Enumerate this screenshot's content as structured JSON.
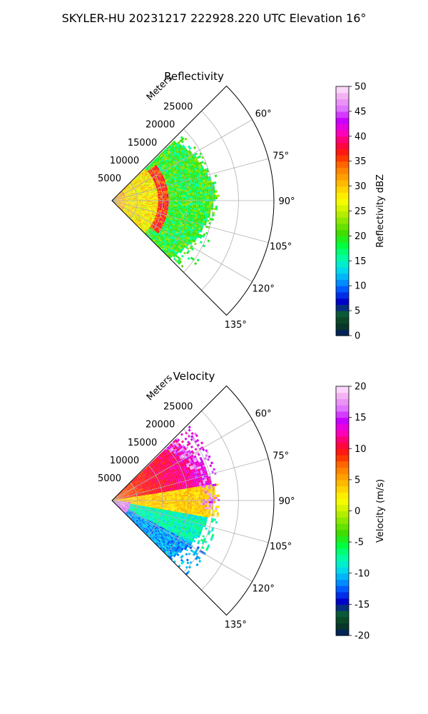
{
  "figure": {
    "title": "SKYLER-HU  20231217  222928.220 UTC Elevation 16°"
  },
  "chart_data": [
    {
      "type": "heatmap",
      "projection": "polar-sector",
      "title": "Reflectivity",
      "range_label": "Meters",
      "range_ticks": [
        5000,
        10000,
        15000,
        20000,
        25000
      ],
      "range_max": 32000,
      "azimuth_ticks": [
        "60°",
        "75°",
        "90°",
        "105°",
        "120°",
        "135°"
      ],
      "azimuth_range_deg": [
        45,
        135
      ],
      "grid": true,
      "colorbar": {
        "label": "Reflectivity dBZ",
        "min": 0,
        "max": 50,
        "ticks": [
          "0",
          "5",
          "10",
          "15",
          "20",
          "25",
          "30",
          "35",
          "40",
          "45",
          "50"
        ],
        "colors": [
          "#001a6e",
          "#0a3d1a",
          "#0b5b3c",
          "#0000c8",
          "#0050ff",
          "#00a8ff",
          "#00e6e6",
          "#00ff9c",
          "#00ff3c",
          "#3cdc00",
          "#7ee600",
          "#c8f000",
          "#ffff00",
          "#ffd000",
          "#ffa000",
          "#ff7000",
          "#ff2000",
          "#ff0050",
          "#ff00c8",
          "#c800ff",
          "#e070ff",
          "#f0a8f0",
          "#ffe6ff"
        ]
      },
      "field": {
        "range_extent_m": 21000,
        "dominant_class": "15-25 dBZ (green)",
        "near_band": "25-35 dBZ (yellow/orange) within 10000 m",
        "ring_feature": "35-40 dBZ (red) arc near 10000 m"
      }
    },
    {
      "type": "heatmap",
      "projection": "polar-sector",
      "title": "Velocity",
      "range_label": "Meters",
      "range_ticks": [
        5000,
        10000,
        15000,
        20000,
        25000
      ],
      "range_max": 32000,
      "azimuth_ticks": [
        "60°",
        "75°",
        "90°",
        "105°",
        "120°",
        "135°"
      ],
      "azimuth_range_deg": [
        45,
        135
      ],
      "grid": true,
      "colorbar": {
        "label": "Velocity (m/s)",
        "min": -20,
        "max": 20,
        "ticks": [
          "-20",
          "-15",
          "-10",
          "-5",
          "0",
          "5",
          "10",
          "15",
          "20"
        ],
        "colors": [
          "#001a6e",
          "#0a3d1a",
          "#0b5b3c",
          "#0000c8",
          "#0050ff",
          "#00a8ff",
          "#00e6e6",
          "#00ff9c",
          "#00ff3c",
          "#3cdc00",
          "#7ee600",
          "#c8f000",
          "#ffff00",
          "#ffd000",
          "#ffa000",
          "#ff7000",
          "#ff2000",
          "#ff0050",
          "#ff00c8",
          "#c800ff",
          "#e070ff",
          "#f0a8f0",
          "#ffe6ff"
        ]
      },
      "field": {
        "range_extent_m": 21000,
        "north_sector": "5-12 m/s (orange/red)",
        "east_sector": "0-5 m/s (yellow)",
        "south_sector": "-5 to -12 m/s (green/cyan)",
        "edge_features": "15-20 m/s (magenta) along outer edge"
      }
    }
  ]
}
